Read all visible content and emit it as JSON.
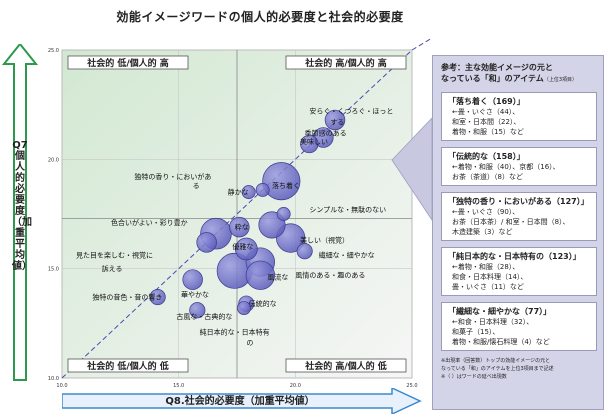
{
  "title": "効能イメージワードの個人的必要度と社会的必要度",
  "chart_data": {
    "type": "scatter",
    "xlabel": "Q8.社会的必要度（加重平均値）",
    "ylabel": "Q7 個人的必要度（加重平均値）",
    "xlim": [
      10.0,
      25.0
    ],
    "ylim": [
      10.0,
      25.0
    ],
    "xticks": [
      "10.0",
      "15.0",
      "20.0",
      "25.0"
    ],
    "yticks": [
      "10.0",
      "15.0",
      "20.0",
      "25.0"
    ],
    "quadrants": {
      "top_left": "社会的 低/個人的 高",
      "top_right": "社会的 高/個人的 高",
      "bottom_left": "社会的 低/個人的 低",
      "bottom_right": "社会的 高/個人的 低"
    },
    "points": [
      {
        "label": "安らぐ・くつろぐ・ほっとする",
        "x": 21.7,
        "y": 21.8,
        "size": 0.9
      },
      {
        "label": "季節感のある",
        "x": 21.2,
        "y": 21.0,
        "size": 0.9
      },
      {
        "label": "美味しい",
        "x": 20.6,
        "y": 20.7,
        "size": 0.8
      },
      {
        "label": "落ち着く",
        "x": 19.4,
        "y": 19.0,
        "size": 1.7
      },
      {
        "label": "独特の香り・においがある",
        "x": 18.6,
        "y": 18.6,
        "size": 0.6
      },
      {
        "label": "静かな",
        "x": 18.0,
        "y": 18.5,
        "size": 0.6
      },
      {
        "label": "シンプルな・無駄のない",
        "x": 19.5,
        "y": 17.5,
        "size": 0.6
      },
      {
        "label": "色合いがよい・彩り豊か",
        "x": 16.6,
        "y": 16.6,
        "size": 1.4
      },
      {
        "label": "粋な",
        "x": 17.6,
        "y": 16.9,
        "size": 0.9
      },
      {
        "label": "落ち着く（小）",
        "x": 19.0,
        "y": 17.0,
        "size": 1.2
      },
      {
        "label": "美しい（視覚）",
        "x": 19.8,
        "y": 16.4,
        "size": 1.3
      },
      {
        "label": "優雅な",
        "x": 17.9,
        "y": 15.9,
        "size": 1.0
      },
      {
        "label": "見た目を楽しむ・視覚に訴える",
        "x": 16.2,
        "y": 16.2,
        "size": 0.9
      },
      {
        "label": "繊細な・細やかな",
        "x": 20.4,
        "y": 15.8,
        "size": 0.7
      },
      {
        "label": "伝統的な（大）",
        "x": 17.4,
        "y": 14.9,
        "size": 1.6
      },
      {
        "label": "風流な",
        "x": 18.5,
        "y": 15.3,
        "size": 1.3
      },
      {
        "label": "風情のある・趣のある",
        "x": 18.5,
        "y": 14.7,
        "size": 1.3
      },
      {
        "label": "華やかな",
        "x": 15.6,
        "y": 14.5,
        "size": 0.9
      },
      {
        "label": "独特の音色・音の響き",
        "x": 14.1,
        "y": 13.7,
        "size": 0.7
      },
      {
        "label": "古風な・古典的な",
        "x": 15.8,
        "y": 13.1,
        "size": 0.7
      },
      {
        "label": "伝統的な",
        "x": 17.9,
        "y": 13.4,
        "size": 0.7
      },
      {
        "label": "純日本的な・日本特有の",
        "x": 17.8,
        "y": 13.2,
        "size": 0.6
      }
    ],
    "labels": [
      {
        "text": "安らぐ・くつろぐ・ほっと",
        "x": 20.6,
        "y": 22.1
      },
      {
        "text": "する",
        "x": 21.5,
        "y": 21.6
      },
      {
        "text": "季節感のある",
        "x": 20.4,
        "y": 21.1
      },
      {
        "text": "美味しい",
        "x": 20.2,
        "y": 20.7
      },
      {
        "text": "独特の香り・においがあ",
        "x": 13.1,
        "y": 19.1
      },
      {
        "text": "る",
        "x": 15.6,
        "y": 18.7
      },
      {
        "text": "静かな",
        "x": 17.1,
        "y": 18.4
      },
      {
        "text": "落ち着く",
        "x": 19.0,
        "y": 18.7
      },
      {
        "text": "シンプルな・無駄のない",
        "x": 20.6,
        "y": 17.6
      },
      {
        "text": "色合いがよい・彩り豊か",
        "x": 12.1,
        "y": 17.0
      },
      {
        "text": "粋な",
        "x": 17.4,
        "y": 16.8
      },
      {
        "text": "美しい（視覚）",
        "x": 20.2,
        "y": 16.2
      },
      {
        "text": "優雅な",
        "x": 17.3,
        "y": 15.9
      },
      {
        "text": "見た目を楽しむ・視覚に",
        "x": 10.6,
        "y": 15.5
      },
      {
        "text": "訴える",
        "x": 11.7,
        "y": 14.9
      },
      {
        "text": "繊細な・細やかな",
        "x": 21.0,
        "y": 15.5
      },
      {
        "text": "風流な",
        "x": 18.8,
        "y": 14.5
      },
      {
        "text": "風情のある・趣のある",
        "x": 20.0,
        "y": 14.6
      },
      {
        "text": "華やかな",
        "x": 15.1,
        "y": 13.7
      },
      {
        "text": "独特の音色・音の響き",
        "x": 11.3,
        "y": 13.6
      },
      {
        "text": "古風な・古典的な",
        "x": 14.9,
        "y": 12.7
      },
      {
        "text": "伝統的な",
        "x": 18.0,
        "y": 13.3
      },
      {
        "text": "純日本的な・日本特有",
        "x": 15.9,
        "y": 12.0
      },
      {
        "text": "の",
        "x": 17.9,
        "y": 11.5
      }
    ]
  },
  "reference": {
    "title": "参考：主な効能イメージの元と",
    "title2": "なっている「和」のアイテム",
    "title2_note": "（上位3項目）",
    "cards": [
      {
        "head": "「落ち着く（169）」",
        "lines": [
          "←畳・いぐさ（44）、",
          "和室・日本間（22）、",
          "着物・和服（15）など"
        ]
      },
      {
        "head": "「伝統的な（158）」",
        "lines": [
          "←着物・和服（40）、京都（16）、",
          "お茶（茶道）（8）など"
        ]
      },
      {
        "head": "「独特の香り・においがある（127）」",
        "lines": [
          "←畳・いぐさ（90）、",
          "お茶（日本茶）/ 和室・日本間（8）、",
          "木造建築（3）など"
        ]
      },
      {
        "head": "「純日本的な・日本特有の（123）」",
        "lines": [
          "←着物・和服（28）、",
          "和食・日本料理（14）、",
          "畳・いぐさ（11）など"
        ]
      },
      {
        "head": "「繊細な・細やかな（77）」",
        "lines": [
          "←和食・日本料理（32）、",
          "和菓子（15）、",
          "着物・和服/懐石料理（4）など"
        ]
      }
    ],
    "note1": "※出現率（回答数）トップの効能イメージの元と",
    "note2": "なっている「和」のアイテムを上位3項目まで記述",
    "note3": "※（ ）はワードの延べ出現数"
  },
  "colors": {
    "bubble_fill": "#6b6bc4",
    "bubble_stroke": "#3c3c8c",
    "bg_top_left": "#d9ecd9",
    "bg_bottom_right": "#f4f4f4",
    "arrow": "#2c9a4a",
    "axis_arrow_blue": "#3a8ad0",
    "ref_bg": "#d4d4e8"
  }
}
